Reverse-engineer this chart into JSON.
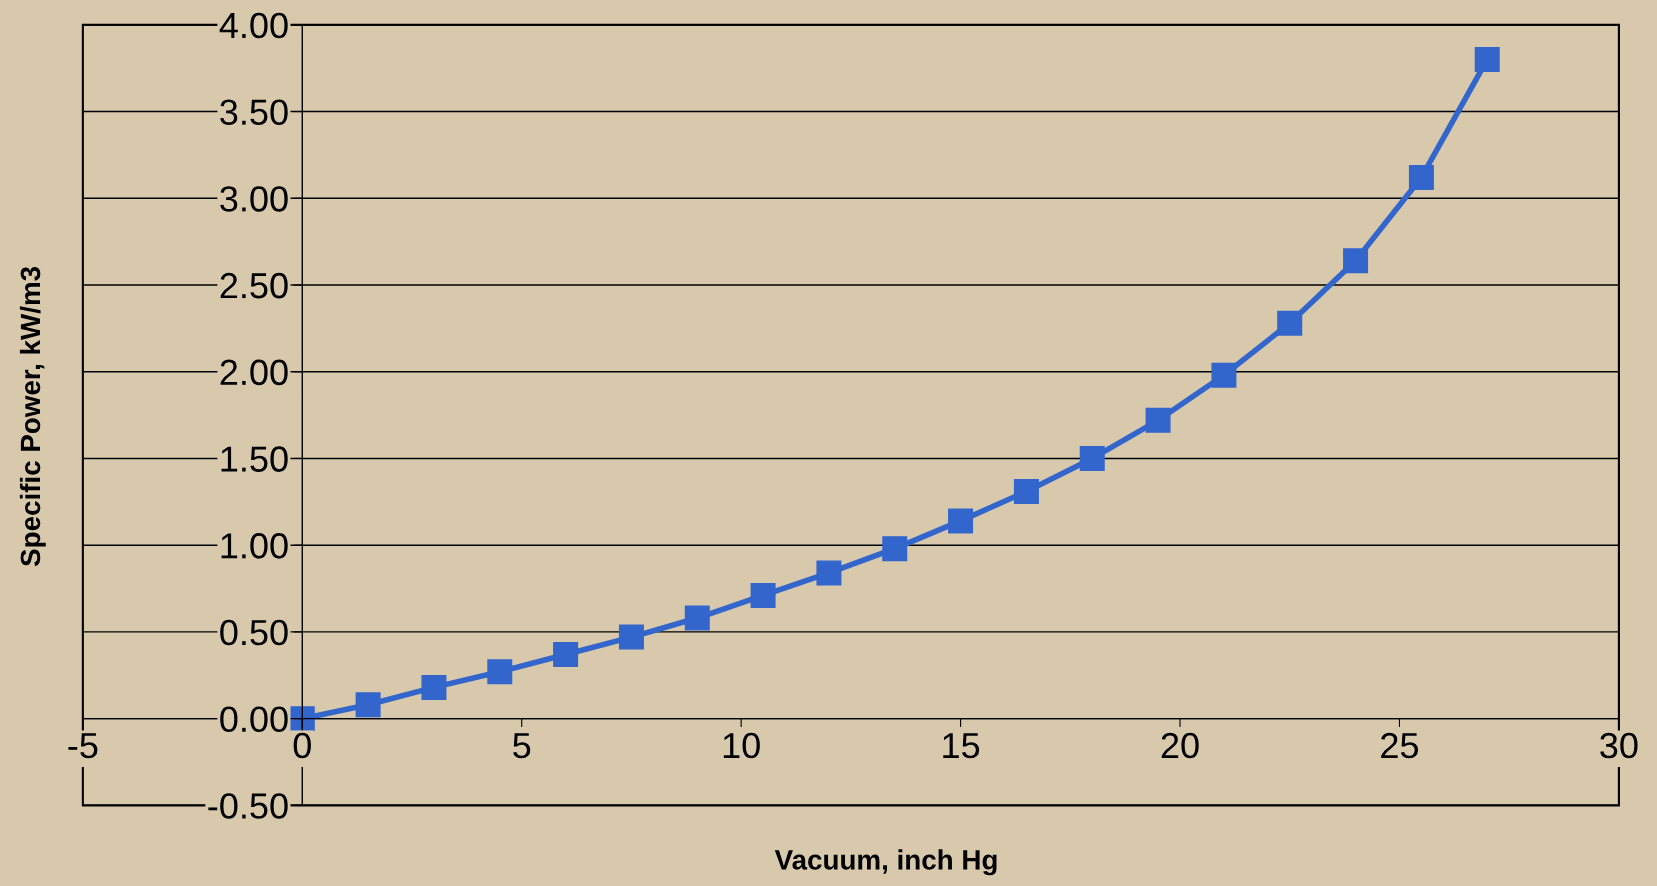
{
  "chart_data": {
    "type": "line",
    "xlabel": "Vacuum, inch Hg",
    "ylabel": "Specific Power, kW/m3",
    "x": [
      0,
      1.5,
      3,
      4.5,
      6,
      7.5,
      9,
      10.5,
      12,
      13.5,
      15,
      16.5,
      18,
      19.5,
      21,
      22.5,
      24,
      25.5,
      27
    ],
    "series": [
      {
        "color": "#3366cc",
        "values": [
          0,
          0.08,
          0.18,
          0.27,
          0.37,
          0.47,
          0.58,
          0.71,
          0.84,
          0.98,
          1.14,
          1.31,
          1.5,
          1.72,
          1.98,
          2.28,
          2.64,
          3.12,
          3.8
        ]
      }
    ],
    "xlim": [
      -5,
      30
    ],
    "xticks": [
      -5,
      0,
      5,
      10,
      15,
      20,
      25,
      30
    ],
    "ylim": [
      -0.5,
      4
    ],
    "yticks": [
      {
        "value": -0.5,
        "label": "-0.50"
      },
      {
        "value": 0,
        "label": "0.00"
      },
      {
        "value": 0.5,
        "label": "0.50"
      },
      {
        "value": 1,
        "label": "1.00"
      },
      {
        "value": 1.5,
        "label": "1.50"
      },
      {
        "value": 2,
        "label": "2.00"
      },
      {
        "value": 2.5,
        "label": "2.50"
      },
      {
        "value": 3,
        "label": "3.00"
      },
      {
        "value": 3.5,
        "label": "3.50"
      },
      {
        "value": 4,
        "label": "4.00"
      }
    ],
    "grid": "y",
    "marker": "square",
    "line_style": "solid"
  }
}
